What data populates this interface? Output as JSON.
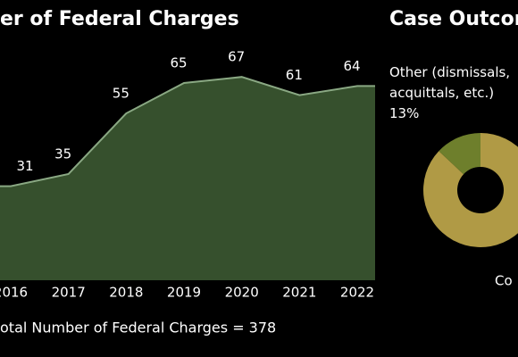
{
  "chart_data": [
    {
      "type": "area",
      "title": "er of Federal Charges",
      "footer": "otal Number of Federal Charges = 378",
      "categories": [
        "2016",
        "2017",
        "2018",
        "2019",
        "2020",
        "2021",
        "2022"
      ],
      "values": [
        31,
        35,
        55,
        65,
        67,
        61,
        64
      ],
      "color": "#3f5e35",
      "line_color": "#8aa883",
      "ylim": [
        0,
        80
      ]
    },
    {
      "type": "donut",
      "title": "Case Outcom",
      "categories": [
        "Co",
        "Other (dismissals, acquittals, etc.)"
      ],
      "values": [
        87,
        13
      ],
      "value_labels": [
        null,
        "13%"
      ],
      "colors": [
        "#b09a45",
        "#6e7f2c"
      ]
    }
  ]
}
